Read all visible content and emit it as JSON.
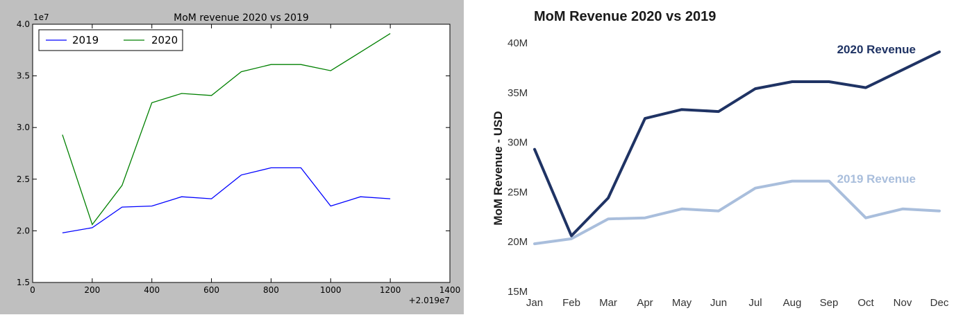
{
  "chart_data": [
    {
      "type": "line",
      "title": "MoM revenue 2020 vs 2019",
      "y_offset_label": "1e7",
      "x_offset_label": "+2.019e7",
      "x_ticks": [
        "0",
        "200",
        "400",
        "600",
        "800",
        "1000",
        "1200",
        "1400"
      ],
      "y_ticks": [
        "1.5",
        "2.0",
        "2.5",
        "3.0",
        "3.5",
        "4.0"
      ],
      "x": [
        100,
        200,
        300,
        400,
        500,
        600,
        700,
        800,
        900,
        1000,
        1100,
        1200
      ],
      "xlim": [
        0,
        1400
      ],
      "ylim": [
        1.5,
        4.0
      ],
      "legend_position": "upper-left",
      "series": [
        {
          "name": "2019",
          "color": "#0000ff",
          "values": [
            1.98,
            2.03,
            2.23,
            2.24,
            2.33,
            2.31,
            2.54,
            2.61,
            2.61,
            2.24,
            2.33,
            2.31
          ]
        },
        {
          "name": "2020",
          "color": "#008000",
          "values": [
            2.93,
            2.06,
            2.44,
            3.24,
            3.33,
            3.31,
            3.54,
            3.61,
            3.61,
            3.55,
            3.73,
            3.91
          ]
        }
      ],
      "grid": false
    },
    {
      "type": "line",
      "title": "MoM Revenue 2020 vs 2019",
      "ylabel": "MoM Revenue - USD",
      "categories": [
        "Jan",
        "Feb",
        "Mar",
        "Apr",
        "May",
        "Jun",
        "Jul",
        "Aug",
        "Sep",
        "Oct",
        "Nov",
        "Dec"
      ],
      "y_ticks": [
        "15M",
        "20M",
        "25M",
        "30M",
        "35M",
        "40M"
      ],
      "ylim": [
        15,
        40
      ],
      "series": [
        {
          "name": "2020 Revenue",
          "color": "#1f3364",
          "values": [
            29.3,
            20.6,
            24.4,
            32.4,
            33.3,
            33.1,
            35.4,
            36.1,
            36.1,
            35.5,
            37.3,
            39.1
          ]
        },
        {
          "name": "2019 Revenue",
          "color": "#a9bedc",
          "values": [
            19.8,
            20.3,
            22.3,
            22.4,
            23.3,
            23.1,
            25.4,
            26.1,
            26.1,
            22.4,
            23.3,
            23.1
          ]
        }
      ],
      "grid": false
    }
  ]
}
